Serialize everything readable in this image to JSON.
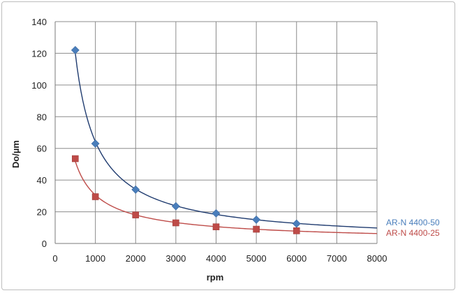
{
  "chart_data": {
    "type": "scatter",
    "title": "",
    "xlabel": "rpm",
    "ylabel": "Do/µm",
    "xlim": [
      0,
      8000
    ],
    "ylim": [
      0,
      140
    ],
    "xticks": [
      "0",
      "1000",
      "2000",
      "3000",
      "4000",
      "5000",
      "6000",
      "7000",
      "8000"
    ],
    "yticks": [
      "0",
      "20",
      "40",
      "60",
      "80",
      "100",
      "120",
      "140"
    ],
    "grid": true,
    "legend_position": "right",
    "series": [
      {
        "name": "AR-N 4400-50",
        "color": "#4a7ebb",
        "line_color": "#1f3b6f",
        "marker": "diamond",
        "trendline": "power",
        "x": [
          500,
          1000,
          2000,
          3000,
          4000,
          5000,
          6000
        ],
        "y": [
          122,
          63,
          34,
          23.5,
          19,
          15,
          12.5
        ]
      },
      {
        "name": "AR-N 4400-25",
        "color": "#be4b48",
        "line_color": "#be4b48",
        "marker": "square",
        "trendline": "power",
        "x": [
          500,
          1000,
          2000,
          3000,
          4000,
          5000,
          6000
        ],
        "y": [
          53.5,
          29.5,
          18,
          13,
          10.5,
          9,
          8
        ]
      }
    ]
  }
}
